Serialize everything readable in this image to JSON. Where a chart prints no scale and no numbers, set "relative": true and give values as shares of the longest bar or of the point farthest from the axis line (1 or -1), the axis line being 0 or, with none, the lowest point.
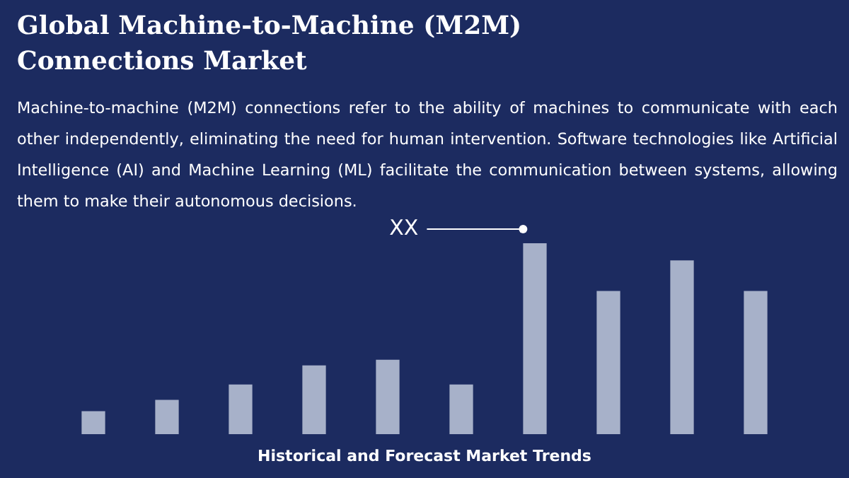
{
  "chart_data": {
    "type": "bar",
    "title": "Global Machine-to-Machine (M2M) Connections Market",
    "subtitle": "Machine-to-machine (M2M) connections refer to the ability of machines to communicate with each other independently, eliminating the need for human intervention. Software technologies like Artificial Intelligence (AI) and Machine Learning (ML) facilitate the communication between systems, allowing them to make their autonomous decisions.",
    "xlabel": "Historical and Forecast Market Trends",
    "annotations": [
      "XX"
    ],
    "relative": true,
    "categories": [
      null,
      null,
      null,
      null,
      null,
      null,
      null,
      null,
      null,
      null
    ],
    "values": [
      0.12,
      0.18,
      0.26,
      0.36,
      0.39,
      0.26,
      1,
      0.75,
      0.91,
      0.75
    ],
    "color": "#a7b1c9"
  }
}
